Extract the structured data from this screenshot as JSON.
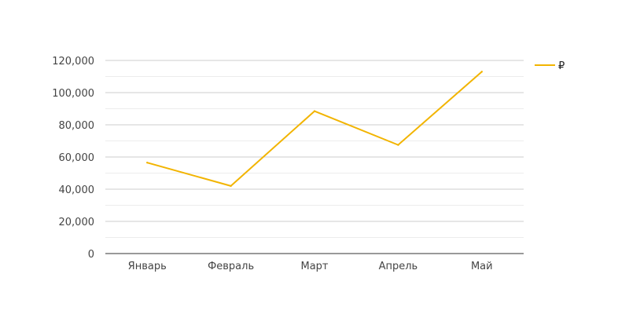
{
  "chart_data": {
    "type": "line",
    "categories": [
      "Январь",
      "Февраль",
      "Март",
      "Апрель",
      "Май"
    ],
    "series": [
      {
        "name": "₽",
        "values": [
          56500,
          42000,
          88500,
          67500,
          113000
        ],
        "color": "#f2b400"
      }
    ],
    "y_ticks": [
      "0",
      "20,000",
      "40,000",
      "60,000",
      "80,000",
      "100,000",
      "120,000"
    ],
    "ylim": [
      0,
      120000
    ],
    "minor_gridlines": true,
    "grid": true,
    "legend_position": "right"
  }
}
